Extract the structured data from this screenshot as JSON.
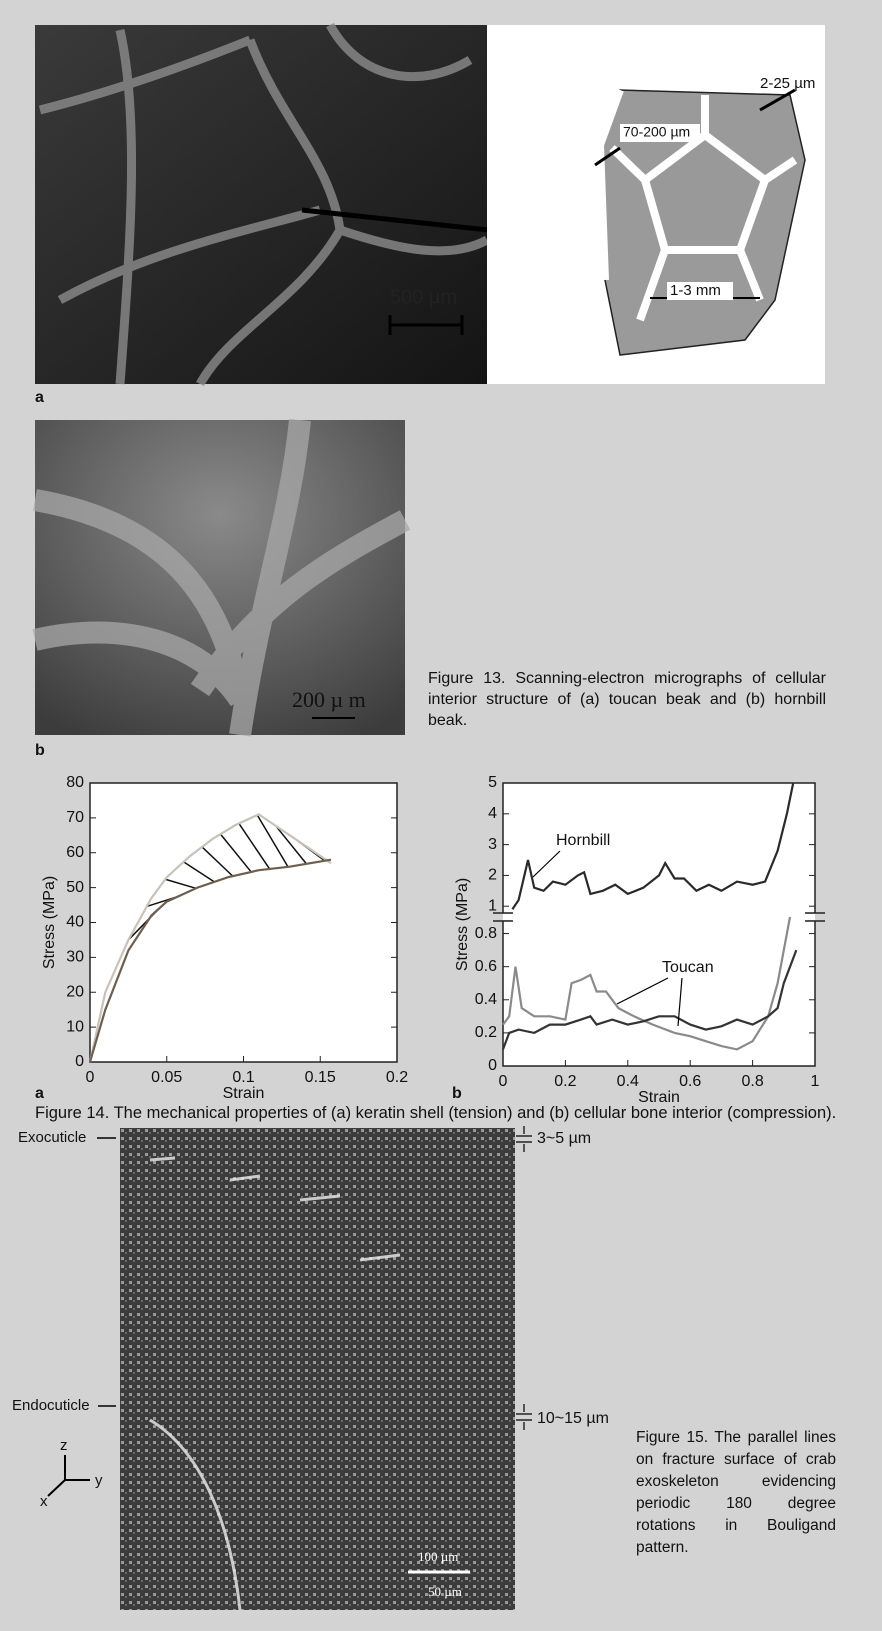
{
  "figure13": {
    "panel_a_label": "a",
    "scale_a": "500 µm",
    "dim_wall": "2-25 µm",
    "dim_strut": "70-200 µm",
    "dim_cell": "1-3 mm",
    "panel_b_label": "b",
    "scale_b": "200 µ m",
    "caption": "Figure 13. Scanning-electron micrographs of cellular interior structure of (a) toucan beak and (b) hornbill beak."
  },
  "chart_data": [
    {
      "type": "line",
      "xlabel": "Strain",
      "ylabel": "Stress (MPa)",
      "xlim": [
        0,
        0.2
      ],
      "xticks": [
        0,
        0.05,
        0.1,
        0.15,
        0.2
      ],
      "ylim": [
        0,
        80
      ],
      "yticks": [
        0,
        10,
        20,
        30,
        40,
        50,
        60,
        70,
        80
      ],
      "hatch": true,
      "series": [
        {
          "color": "#c8c2b8",
          "x": [
            0,
            0.01,
            0.025,
            0.04,
            0.05,
            0.065,
            0.08,
            0.095,
            0.11,
            0.157
          ],
          "values": [
            0,
            20,
            35,
            47,
            53,
            59,
            64,
            68,
            71,
            57
          ]
        },
        {
          "color": "#6e5e4e",
          "x": [
            0,
            0.01,
            0.025,
            0.04,
            0.05,
            0.07,
            0.09,
            0.11,
            0.13,
            0.157
          ],
          "values": [
            0,
            15,
            32,
            42,
            46,
            50,
            53,
            55,
            56,
            58
          ]
        }
      ]
    },
    {
      "type": "line",
      "xlabel": "Strain",
      "ylabel": "Stress (MPa)",
      "xlim": [
        0,
        1
      ],
      "xticks": [
        0,
        0.2,
        0.4,
        0.6,
        0.8,
        1
      ],
      "ylim": [
        0.65,
        5
      ],
      "yticks": [
        1,
        2,
        3,
        4,
        5
      ],
      "y2lim": [
        0,
        0.9
      ],
      "y2ticks": [
        0,
        0.2,
        0.4,
        0.6,
        0.8
      ],
      "series": [
        {
          "name": "Hornbill",
          "color": "#2a2a2a",
          "x": [
            0.03,
            0.05,
            0.08,
            0.1,
            0.13,
            0.16,
            0.2,
            0.24,
            0.26,
            0.28,
            0.32,
            0.36,
            0.4,
            0.45,
            0.5,
            0.52,
            0.55,
            0.58,
            0.62,
            0.66,
            0.7,
            0.75,
            0.8,
            0.84,
            0.88,
            0.91,
            0.93
          ],
          "values": [
            0.9,
            1.2,
            2.5,
            1.6,
            1.5,
            1.8,
            1.7,
            2.0,
            2.1,
            1.4,
            1.5,
            1.7,
            1.4,
            1.6,
            2.0,
            2.4,
            1.9,
            1.9,
            1.5,
            1.7,
            1.5,
            1.8,
            1.7,
            1.8,
            2.8,
            4.0,
            5.0
          ]
        },
        {
          "name": "Toucan",
          "axis": "y2",
          "color": "#8a8a8a",
          "x": [
            0,
            0.02,
            0.04,
            0.06,
            0.1,
            0.15,
            0.2,
            0.22,
            0.25,
            0.28,
            0.3,
            0.33,
            0.37,
            0.42,
            0.48,
            0.55,
            0.6,
            0.65,
            0.7,
            0.75,
            0.8,
            0.85,
            0.88,
            0.92
          ],
          "values": [
            0.25,
            0.3,
            0.6,
            0.35,
            0.3,
            0.3,
            0.28,
            0.5,
            0.52,
            0.55,
            0.45,
            0.45,
            0.35,
            0.3,
            0.25,
            0.2,
            0.18,
            0.15,
            0.12,
            0.1,
            0.15,
            0.3,
            0.5,
            0.9
          ]
        },
        {
          "axis": "y2",
          "color": "#333333",
          "x": [
            0,
            0.02,
            0.05,
            0.1,
            0.15,
            0.2,
            0.25,
            0.28,
            0.3,
            0.35,
            0.4,
            0.45,
            0.5,
            0.55,
            0.6,
            0.65,
            0.7,
            0.75,
            0.8,
            0.85,
            0.88,
            0.9,
            0.94
          ],
          "values": [
            0.1,
            0.2,
            0.22,
            0.2,
            0.25,
            0.25,
            0.28,
            0.3,
            0.25,
            0.28,
            0.25,
            0.27,
            0.3,
            0.3,
            0.25,
            0.22,
            0.24,
            0.28,
            0.25,
            0.3,
            0.35,
            0.5,
            0.7
          ]
        }
      ]
    }
  ],
  "figure14": {
    "panel_labels": [
      "a",
      "b"
    ],
    "caption": "Figure 14. The mechanical properties of (a) keratin shell (tension) and (b) cellular bone interior (compression)."
  },
  "figure15": {
    "exocuticle": "Exocuticle",
    "endocuticle": "Endocuticle",
    "dim_top": "3~5 µm",
    "dim_bottom": "10~15 µm",
    "axis_z": "z",
    "axis_y": "y",
    "axis_x": "x",
    "scale_upper": "100 µm",
    "scale_lower": "50 µm",
    "caption": "Figure 15. The parallel lines on fracture surface of crab exoskeleton evidencing periodic 180 degree rotations in Bouligand pattern."
  }
}
